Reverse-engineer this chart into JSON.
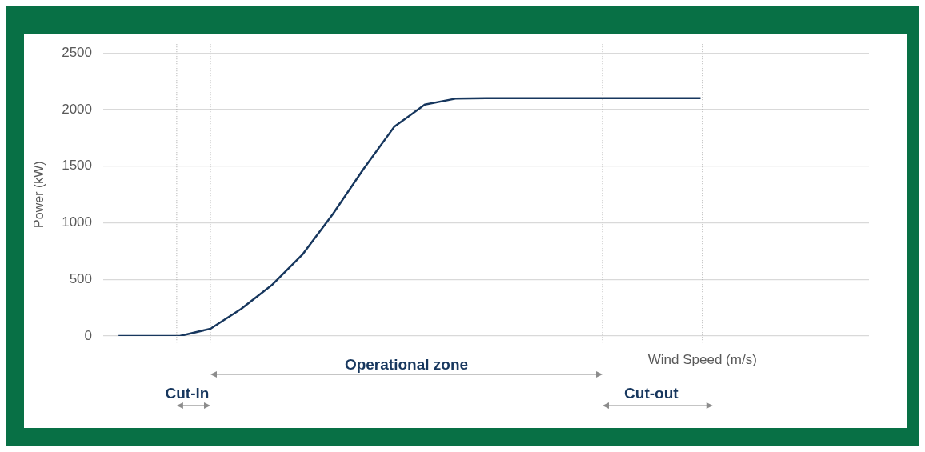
{
  "chart_data": {
    "type": "line",
    "ylabel": "Power (kW)",
    "xlabel": "Wind Speed (m/s)",
    "categories": [
      null,
      null,
      null,
      null,
      null,
      null,
      null,
      null,
      null,
      null,
      null,
      null,
      null,
      null,
      null,
      null,
      null,
      null,
      null,
      null,
      null,
      null,
      null,
      null,
      null
    ],
    "ylim": [
      0,
      2500
    ],
    "yticks": [
      0,
      500,
      1000,
      1500,
      2000,
      2500
    ],
    "tick_labels": "y",
    "grid": "y",
    "marker": "none",
    "line_style": "solid",
    "series": [
      {
        "color": "#17375e",
        "values": [
          0,
          0,
          0,
          64,
          239,
          448,
          718,
          1078,
          1475,
          1847,
          2044,
          2096,
          2100,
          2100,
          2100,
          2100,
          2100,
          2100,
          2100,
          2100,
          null,
          null,
          null,
          null,
          null
        ]
      }
    ],
    "annotations": [
      "Cut-in",
      "Operational zone",
      "Cut-out"
    ]
  }
}
